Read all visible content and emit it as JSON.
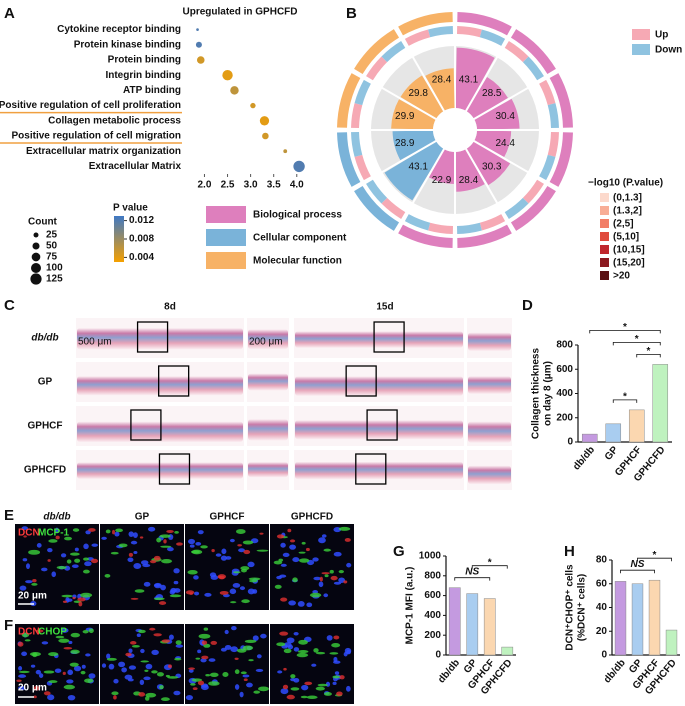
{
  "figure": {
    "panel_labels": [
      "A",
      "B",
      "C",
      "D",
      "E",
      "F",
      "G",
      "H"
    ]
  },
  "chart_data": [
    {
      "type": "dot",
      "title": "Upregulated in GPHCFD",
      "categories": [
        "Cytokine receptor binding",
        "Protein kinase binding",
        "Protein binding",
        "Integrin binding",
        "ATP binding",
        "Positive regulation of cell proliferation",
        "Collagen metabolic process",
        "Positive regulation of cell migration",
        "Extracellular matrix organization",
        "Extracellular Matrix"
      ],
      "values": [
        1.85,
        1.88,
        1.92,
        2.5,
        2.65,
        3.05,
        3.3,
        3.32,
        3.75,
        4.05
      ],
      "sizes": [
        5,
        25,
        40,
        75,
        50,
        20,
        60,
        30,
        10,
        90
      ],
      "pvalues": [
        0.012,
        0.012,
        0.005,
        0.004,
        0.006,
        0.005,
        0.004,
        0.005,
        0.006,
        0.012
      ],
      "underlined": [
        false,
        false,
        false,
        false,
        false,
        true,
        false,
        true,
        false,
        false
      ],
      "underline_color": "#f0a040",
      "xlim": [
        1.6,
        4.2
      ],
      "xticks": [
        {
          "value": 2,
          "label": "2.0"
        },
        {
          "value": 2.5,
          "label": "2.5"
        },
        {
          "value": 3,
          "label": "3.0"
        },
        {
          "value": 3.5,
          "label": "3.5"
        },
        {
          "value": 4,
          "label": "4.0"
        }
      ],
      "size_legend": {
        "title": "Count",
        "values": [
          25,
          50,
          75,
          100,
          125
        ]
      },
      "color_legend": {
        "title": "P value",
        "ticks": [
          0.012,
          0.008,
          0.004
        ],
        "range": [
          0.003,
          0.013
        ],
        "colors": [
          "#f5a000",
          "#3f78c4"
        ]
      },
      "groups": [
        {
          "name": "Biological process",
          "color": "#de7fbd"
        },
        {
          "name": "Cellular component",
          "color": "#7ab3d9"
        },
        {
          "name": "Molecular function",
          "color": "#f7b266"
        }
      ]
    },
    {
      "type": "circos",
      "legend": [
        {
          "name": "Up",
          "color": "#f6a9b4"
        },
        {
          "name": "Down",
          "color": "#8fc3e0"
        }
      ],
      "scale_title": "−log10 (P.value)",
      "scale_labels": [
        "(0,1.3]",
        "(1.3,2]",
        "(2,5]",
        "(5,10]",
        "(10,15]",
        "(15,20]",
        ">20"
      ],
      "scale_colors": [
        "#fcd9cc",
        "#f8ad96",
        "#f27d66",
        "#e04a3c",
        "#c0272d",
        "#8c1a20",
        "#5a0f12"
      ],
      "sector_colors": [
        "#de7fbd",
        "#de7fbd",
        "#de7fbd",
        "#de7fbd",
        "#de7fbd",
        "#de7fbd",
        "#de7fbd",
        "#7ab3d9",
        "#7ab3d9",
        "#f7b266",
        "#f7b266",
        "#f7b266"
      ],
      "inner_values": [
        43.1,
        28.5,
        30.4,
        24.4,
        30.3,
        28.4,
        22.9,
        43.1,
        28.9,
        29.9,
        29.8,
        28.4
      ]
    },
    {
      "type": "bar",
      "ylabel": [
        "Collagen thickness",
        "on day 8 (μm)"
      ],
      "categories": [
        "db/db",
        "GP",
        "GPHCF",
        "GPHCFD"
      ],
      "values": [
        65,
        150,
        265,
        640
      ],
      "colors": [
        "#c49ae0",
        "#a9cdf0",
        "#fbd7b0",
        "#bff2bf"
      ],
      "ylim": [
        0,
        800
      ],
      "yticks": [
        0,
        200,
        400,
        600,
        800
      ],
      "annotations": [
        {
          "text": "*",
          "between": [
            "GP",
            "GPHCF"
          ]
        },
        {
          "text": "*",
          "between": [
            "GPHCF",
            "GPHCFD"
          ]
        },
        {
          "text": "*",
          "between": [
            "GP",
            "GPHCFD"
          ]
        },
        {
          "text": "*",
          "between": [
            "db/db",
            "GPHCFD"
          ]
        }
      ]
    },
    {
      "type": "bar",
      "ylabel": [
        "MCP-1 MFI (a.u.)"
      ],
      "categories": [
        "db/db",
        "GP",
        "GPHCF",
        "GPHCFD"
      ],
      "values": [
        680,
        620,
        570,
        80
      ],
      "colors": [
        "#c49ae0",
        "#a9cdf0",
        "#fbd7b0",
        "#bff2bf"
      ],
      "ylim": [
        0,
        1000
      ],
      "yticks": [
        0,
        200,
        400,
        600,
        800,
        1000
      ],
      "annotations": [
        {
          "text": "NS",
          "between": [
            "db/db",
            "GPHCF"
          ]
        },
        {
          "text": "*",
          "between": [
            "GP",
            "GPHCFD"
          ]
        }
      ]
    },
    {
      "type": "bar",
      "ylabel": [
        "DCN⁺CHOP⁺ cells",
        "(%DCN⁺ cells)"
      ],
      "categories": [
        "db/db",
        "GP",
        "GPHCF",
        "GPHCFD"
      ],
      "values": [
        62,
        60,
        63,
        21
      ],
      "colors": [
        "#c49ae0",
        "#a9cdf0",
        "#fbd7b0",
        "#bff2bf"
      ],
      "ylim": [
        0,
        80
      ],
      "yticks": [
        0,
        20,
        40,
        60,
        80
      ],
      "annotations": [
        {
          "text": "NS",
          "between": [
            "db/db",
            "GPHCF"
          ]
        },
        {
          "text": "*",
          "between": [
            "GP",
            "GPHCFD"
          ]
        }
      ]
    }
  ],
  "panel_c": {
    "columns": [
      "8d",
      "15d"
    ],
    "rows": [
      "db/db",
      "GP",
      "GPHCF",
      "GPHCFD"
    ],
    "scale_bars": [
      "500 μm",
      "200 μm"
    ]
  },
  "panel_e": {
    "columns": [
      "db/db",
      "GP",
      "GPHCF",
      "GPHCFD"
    ],
    "stain": [
      "DCN",
      "MCP-1"
    ],
    "scale_bar": "20 μm"
  },
  "panel_f": {
    "stain": [
      "DCN",
      "CHOP"
    ],
    "scale_bar": "20 μm"
  }
}
